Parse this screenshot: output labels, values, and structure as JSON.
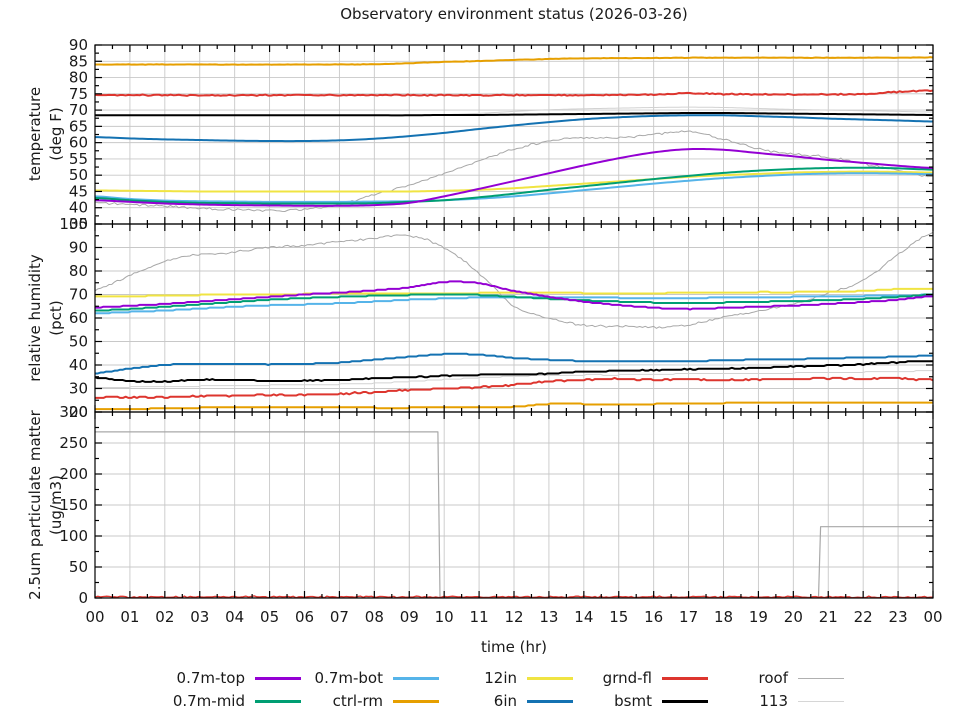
{
  "chart_data": {
    "type": "line",
    "title": "Observatory environment status (2026-03-26)",
    "xlabel": "time (hr)",
    "x_range": [
      0,
      24
    ],
    "x_ticks": [
      "00",
      "01",
      "02",
      "03",
      "04",
      "05",
      "06",
      "07",
      "08",
      "09",
      "10",
      "11",
      "12",
      "13",
      "14",
      "15",
      "16",
      "17",
      "18",
      "19",
      "20",
      "21",
      "22",
      "23",
      "00"
    ],
    "grid": true,
    "panels": [
      {
        "name": "temperature",
        "ylabel_lines": [
          "temperature",
          "(deg F)"
        ],
        "ylim": [
          35,
          90
        ],
        "ytick_step": 5,
        "yticks": [
          35,
          40,
          45,
          50,
          55,
          60,
          65,
          70,
          75,
          80,
          85,
          90
        ],
        "series": [
          {
            "name": "roof",
            "color": "#a8a8a8",
            "w": 1,
            "jitter": 0.35,
            "y": [
              41.5,
              41,
              40.5,
              39.8,
              39.4,
              39.2,
              39.4,
              41,
              44,
              47,
              50.5,
              54.5,
              58,
              60.5,
              61.5,
              61.5,
              62.5,
              63.5,
              61,
              58,
              56.5,
              55.5,
              53.5,
              51.5,
              49.5
            ]
          },
          {
            "name": "113",
            "color": "#d2d2d2",
            "w": 1,
            "y": [
              68.3,
              68.3,
              68.3,
              68.3,
              68.3,
              68.3,
              68.3,
              68.3,
              68.3,
              68.4,
              68.6,
              69,
              69.6,
              70.1,
              70.4,
              70.6,
              70.8,
              70.9,
              70.8,
              70.5,
              70.2,
              70,
              69.8,
              69.6,
              69.4
            ]
          },
          {
            "name": "ctrl-rm",
            "color": "#e69f00",
            "w": 2,
            "jitter": 0.07,
            "y": [
              84,
              84,
              84,
              84,
              84,
              84,
              84,
              84,
              84.1,
              84.4,
              84.8,
              85.1,
              85.4,
              85.7,
              85.9,
              86,
              86,
              86.1,
              86.1,
              86.1,
              86.1,
              86.1,
              86.1,
              86.1,
              86.2
            ]
          },
          {
            "name": "grnd-fl",
            "color": "#dd352e",
            "w": 2,
            "jitter": 0.2,
            "y": [
              74.6,
              74.6,
              74.6,
              74.6,
              74.6,
              74.6,
              74.6,
              74.6,
              74.6,
              74.6,
              74.6,
              74.6,
              74.6,
              74.6,
              74.6,
              74.7,
              74.7,
              75.2,
              74.9,
              74.8,
              74.8,
              74.8,
              74.9,
              75.6,
              76
            ]
          },
          {
            "name": "12in",
            "color": "#f0e442",
            "w": 2,
            "y": [
              45.3,
              45.2,
              45.1,
              45,
              45,
              45,
              45,
              45,
              45,
              45,
              45.2,
              45.5,
              46,
              46.7,
              47.4,
              48.1,
              48.8,
              49.5,
              50,
              50.4,
              50.8,
              51,
              51.1,
              51,
              50.8
            ]
          },
          {
            "name": "0.7m-bot",
            "color": "#56b4e9",
            "w": 2,
            "y": [
              43.5,
              42.7,
              42.2,
              42,
              41.9,
              41.8,
              41.8,
              41.8,
              41.9,
              42,
              42.3,
              42.8,
              43.5,
              44.4,
              45.4,
              46.4,
              47.4,
              48.3,
              49.1,
              49.7,
              50.2,
              50.5,
              50.6,
              50.5,
              50.3
            ]
          },
          {
            "name": "0.7m-mid",
            "color": "#009e73",
            "w": 2,
            "y": [
              43,
              42.3,
              41.8,
              41.5,
              41.4,
              41.3,
              41.3,
              41.3,
              41.4,
              41.8,
              42.3,
              43.2,
              44.3,
              45.5,
              46.6,
              47.7,
              48.8,
              49.8,
              50.7,
              51.4,
              51.9,
              52.2,
              52.3,
              52.1,
              51.7
            ]
          },
          {
            "name": "0.7m-top",
            "color": "#9400d3",
            "w": 2,
            "y": [
              42.3,
              41.8,
              41.3,
              41,
              40.8,
              40.7,
              40.6,
              40.6,
              40.8,
              41.5,
              43.5,
              45.8,
              48.2,
              50.6,
              53,
              55.2,
              57,
              58,
              57.8,
              56.8,
              55.8,
              54.7,
              53.8,
              52.9,
              52.2
            ]
          },
          {
            "name": "6in",
            "color": "#1472b2",
            "w": 2,
            "y": [
              61.7,
              61.3,
              61,
              60.8,
              60.6,
              60.5,
              60.5,
              60.7,
              61.2,
              62,
              63,
              64.2,
              65.3,
              66.3,
              67.2,
              67.8,
              68.2,
              68.4,
              68.4,
              68.1,
              67.8,
              67.4,
              67.1,
              66.8,
              66.5
            ]
          },
          {
            "name": "bsmt",
            "color": "#000000",
            "w": 2,
            "y": [
              68.4,
              68.4,
              68.4,
              68.4,
              68.4,
              68.4,
              68.4,
              68.4,
              68.4,
              68.4,
              68.5,
              68.5,
              68.6,
              68.7,
              68.8,
              68.9,
              69,
              69.1,
              69.1,
              69,
              68.9,
              68.8,
              68.7,
              68.6,
              68.5
            ]
          }
        ]
      },
      {
        "name": "relative-humidity",
        "ylabel_lines": [
          "relative humidity",
          "(pct)"
        ],
        "ylim": [
          20,
          100
        ],
        "ytick_step": 10,
        "yticks": [
          20,
          30,
          40,
          50,
          60,
          70,
          80,
          90,
          100
        ],
        "series": [
          {
            "name": "roof",
            "color": "#a8a8a8",
            "w": 1,
            "jitter": 0.5,
            "y": [
              72,
              78,
              84,
              87,
              88,
              90,
              91,
              92.5,
              94,
              95,
              90,
              79,
              65,
              60,
              57,
              56.5,
              56,
              57,
              60.5,
              63,
              66,
              70.5,
              76,
              87,
              96.5
            ]
          },
          {
            "name": "113",
            "color": "#d2d2d2",
            "w": 1,
            "q": 0.4,
            "y": [
              30.5,
              30.6,
              30.8,
              31,
              31.2,
              31.4,
              31.6,
              31.8,
              32.2,
              33,
              33.8,
              34.6,
              35.2,
              35.6,
              35.8,
              35.8,
              36,
              36.3,
              36.4,
              36.4,
              36.6,
              36.7,
              37,
              37.2,
              37.6
            ]
          },
          {
            "name": "ctrl-rm",
            "color": "#e69f00",
            "w": 2,
            "q": 0.4,
            "y": [
              21.3,
              21.3,
              21.5,
              21.8,
              21.8,
              21.8,
              21.8,
              21.8,
              21.8,
              21.8,
              22,
              22.1,
              22.2,
              23.4,
              23.4,
              23.4,
              23.4,
              23.5,
              23.8,
              23.8,
              23.8,
              23.8,
              23.8,
              23.8,
              23.8
            ]
          },
          {
            "name": "grnd-fl",
            "color": "#dd352e",
            "w": 2,
            "q": 0.5,
            "jitter": 0.3,
            "y": [
              26,
              26.3,
              26.5,
              26.8,
              27,
              27.3,
              27.3,
              27.8,
              28.3,
              29.3,
              30,
              30.6,
              31.6,
              33,
              33.6,
              34,
              33.6,
              34,
              33.6,
              34,
              34,
              34.4,
              34,
              34.4,
              33.6
            ]
          },
          {
            "name": "12in",
            "color": "#f0e442",
            "w": 2,
            "q": 0.4,
            "y": [
              69,
              69.3,
              69.5,
              69.8,
              70,
              70,
              70.2,
              70.3,
              70.4,
              70.5,
              70.5,
              70.6,
              70.8,
              70.8,
              70.6,
              70.5,
              70.5,
              70.8,
              70.9,
              71,
              71,
              71.2,
              71.5,
              72.3,
              72.5
            ]
          },
          {
            "name": "0.7m-bot",
            "color": "#56b4e9",
            "w": 2,
            "q": 0.4,
            "y": [
              62,
              62.6,
              63.2,
              64,
              64.8,
              65.4,
              65.8,
              66.3,
              67,
              67.8,
              68.3,
              68.7,
              68.9,
              69,
              68.8,
              68.6,
              68.5,
              68.5,
              68.7,
              68.9,
              69,
              69.2,
              69.4,
              69.6,
              69.9
            ]
          },
          {
            "name": "0.7m-mid",
            "color": "#009e73",
            "w": 2,
            "q": 0.4,
            "y": [
              63.2,
              63.8,
              64.8,
              65.8,
              66.8,
              67.8,
              68.5,
              69,
              69.5,
              69.8,
              70,
              69.8,
              69,
              68.2,
              67.5,
              67,
              66.6,
              66.4,
              66.6,
              66.9,
              67.2,
              67.6,
              68.2,
              69,
              70
            ]
          },
          {
            "name": "0.7m-top",
            "color": "#9400d3",
            "w": 2,
            "q": 0.4,
            "y": [
              64.5,
              65.2,
              66,
              67,
              68,
              69,
              70,
              70.8,
              71.8,
              73,
              75.3,
              74.8,
              71.5,
              69,
              67,
              65.5,
              64.4,
              63.8,
              64.3,
              64.8,
              65.3,
              66,
              66.8,
              67.8,
              69.3
            ]
          },
          {
            "name": "6in",
            "color": "#1472b2",
            "w": 2,
            "q": 0.4,
            "y": [
              36.5,
              38.5,
              40,
              40.5,
              40.4,
              40.2,
              40.5,
              41,
              42.3,
              43.5,
              44.6,
              44.4,
              43,
              42.2,
              41.7,
              41.5,
              41.5,
              41.6,
              42,
              42.3,
              42.5,
              42.8,
              43.2,
              43.5,
              44
            ]
          },
          {
            "name": "bsmt",
            "color": "#000000",
            "w": 2,
            "q": 0.4,
            "jitter": 0.2,
            "y": [
              34.5,
              33.2,
              33,
              33.8,
              33.6,
              33.2,
              33.4,
              33.6,
              34.3,
              34.8,
              35.3,
              35.8,
              36,
              36.4,
              37.2,
              37.6,
              37.8,
              38.2,
              38.4,
              38.8,
              39.3,
              39.8,
              40.3,
              41.2,
              41.8
            ]
          }
        ]
      },
      {
        "name": "particulate-matter",
        "ylabel_lines": [
          "2.5um particulate matter",
          "(ug/m3)"
        ],
        "ylim": [
          0,
          300
        ],
        "ytick_step": 50,
        "yticks": [
          0,
          50,
          100,
          150,
          200,
          250,
          300
        ],
        "series": [
          {
            "name": "113",
            "color": "#d2d2d2",
            "w": 1,
            "y": [
              1.2,
              1.2,
              1.2,
              1.2,
              1.2,
              1.2,
              1.2,
              1.2,
              1.2,
              1.2,
              1.2,
              1.2,
              1.2,
              1.2,
              1.2,
              1.2,
              1.2,
              1.2,
              1.2,
              1.2,
              1.2,
              1.2,
              1.2,
              1.2,
              1.2
            ]
          },
          {
            "name": "roof",
            "color": "#a8a8a8",
            "w": 1.2,
            "x": [
              0,
              9.82,
              9.88,
              20.72,
              20.78,
              24
            ],
            "y": [
              268,
              268,
              1,
              1,
              115,
              115
            ]
          },
          {
            "name": "grnd-fl",
            "color": "#dd352e",
            "w": 1.3,
            "jitter": 1.4,
            "clampMin": 0.2,
            "y": [
              1.8,
              1.8,
              1.8,
              1.8,
              1.8,
              1.8,
              1.8,
              1.8,
              1.8,
              1.8,
              1.8,
              1.8,
              1.8,
              1.8,
              1.8,
              1.8,
              1.8,
              1.8,
              1.8,
              1.8,
              1.8,
              1.8,
              1.8,
              1.8,
              1.8
            ]
          }
        ]
      }
    ],
    "legend": {
      "rows": [
        [
          {
            "label": "0.7m-top",
            "color": "#9400d3",
            "thin": false
          },
          {
            "label": "0.7m-bot",
            "color": "#56b4e9",
            "thin": false
          },
          {
            "label": "12in",
            "color": "#f0e442",
            "thin": false
          },
          {
            "label": "grnd-fl",
            "color": "#dd352e",
            "thin": false
          },
          {
            "label": "roof",
            "color": "#b0b0b0",
            "thin": true
          }
        ],
        [
          {
            "label": "0.7m-mid",
            "color": "#009e73",
            "thin": false
          },
          {
            "label": "ctrl-rm",
            "color": "#e69f00",
            "thin": false
          },
          {
            "label": "6in",
            "color": "#1472b2",
            "thin": false
          },
          {
            "label": "bsmt",
            "color": "#000000",
            "thin": false
          },
          {
            "label": "113",
            "color": "#d6d6d6",
            "thin": true
          }
        ]
      ]
    },
    "style": {
      "grid_color": "#c8c8c8",
      "axis_color": "#000000",
      "text_color": "#1a1a1a"
    }
  }
}
